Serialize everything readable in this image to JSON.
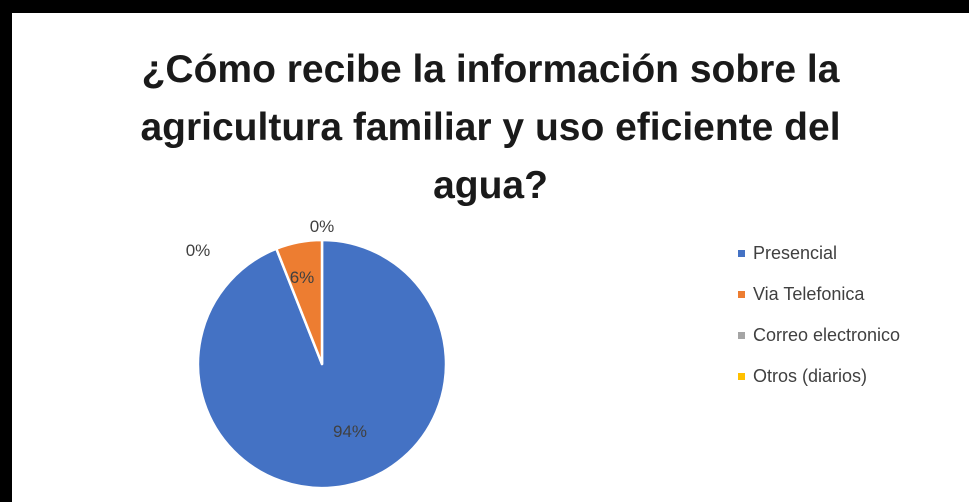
{
  "chart_data": {
    "type": "pie",
    "title_lines": [
      "¿Cómo recibe la información sobre la",
      "agricultura familiar y uso eficiente del",
      "agua?"
    ],
    "categories": [
      "Presencial",
      "Via Telefonica",
      "Correo electronico",
      "Otros (diarios)"
    ],
    "values": [
      94,
      6,
      0,
      0
    ],
    "data_labels": [
      "94%",
      "6%",
      "0%",
      "0%"
    ],
    "colors": [
      "#4472C4",
      "#ED7D31",
      "#A5A5A5",
      "#FFC000"
    ],
    "legend_position": "right"
  }
}
